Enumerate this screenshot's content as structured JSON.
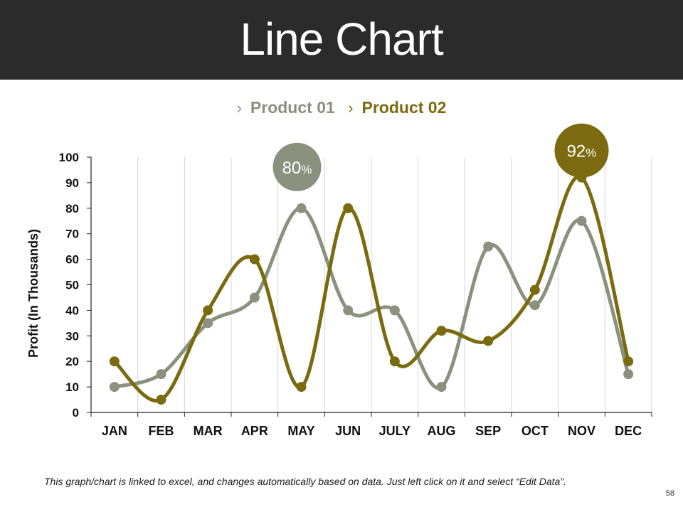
{
  "header": {
    "title": "Line Chart"
  },
  "colors": {
    "title_bar": "#2b2b2b",
    "product01": "#8a927e",
    "product02": "#7b6a10",
    "grid": "#d4d4d4",
    "axis": "#222222"
  },
  "legend": {
    "marker_icon": "›",
    "items": [
      {
        "label": "Product 01",
        "color": "#8a927e"
      },
      {
        "label": "Product 02",
        "color": "#7b6a10"
      }
    ]
  },
  "chart_data": {
    "type": "line",
    "smooth": true,
    "title": "",
    "xlabel": "",
    "ylabel": "Profit (In Thousands)",
    "ylim": [
      0,
      100
    ],
    "yticks": [
      0,
      10,
      20,
      30,
      40,
      50,
      60,
      70,
      80,
      90,
      100
    ],
    "grid": "vertical",
    "categories": [
      "JAN",
      "FEB",
      "MAR",
      "APR",
      "MAY",
      "JUN",
      "JULY",
      "AUG",
      "SEP",
      "OCT",
      "NOV",
      "DEC"
    ],
    "series": [
      {
        "name": "Product 01",
        "color": "#8a927e",
        "values": [
          10,
          15,
          35,
          45,
          80,
          40,
          40,
          10,
          65,
          42,
          75,
          15
        ]
      },
      {
        "name": "Product 02",
        "color": "#7b6a10",
        "values": [
          20,
          5,
          40,
          60,
          10,
          80,
          20,
          32,
          28,
          48,
          92,
          20
        ]
      }
    ],
    "annotations": [
      {
        "series": "Product 01",
        "category": "MAY",
        "value_text": "80",
        "unit_text": "%",
        "color": "#8a927e"
      },
      {
        "series": "Product 02",
        "category": "NOV",
        "value_text": "92",
        "unit_text": "%",
        "color": "#7b6a10"
      }
    ]
  },
  "footer": {
    "note": "This graph/chart is linked to excel, and changes automatically based on data. Just left click on it and select “Edit Data”.",
    "page_number": "58"
  }
}
